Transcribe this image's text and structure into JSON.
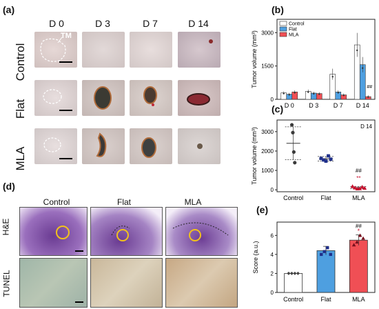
{
  "panel_a": {
    "label": "(a)",
    "columns": [
      "D 0",
      "D 3",
      "D 7",
      "D 14"
    ],
    "rows": [
      "Control",
      "Flat",
      "MLA"
    ],
    "tm_label": "TM"
  },
  "panel_d": {
    "label": "(d)",
    "columns": [
      "Control",
      "Flat",
      "MLA"
    ],
    "rows": [
      "H&E",
      "TUNEL"
    ]
  },
  "panel_b_label": "(b)",
  "panel_c_label": "(c)",
  "panel_e_label": "(e)",
  "colors": {
    "control": "#ffffff",
    "flat": "#4e9fe0",
    "mla": "#f04f55",
    "c_control": "#3a3a3a",
    "c_flat": "#1f2f8a",
    "c_mla": "#c8102e"
  },
  "chart_data": [
    {
      "type": "bar",
      "panel": "b",
      "ylabel": "Tumor volume (mm³)",
      "yticks": [
        0,
        1500,
        3000
      ],
      "ylim": [
        0,
        3600
      ],
      "categories": [
        "D 0",
        "D 3",
        "D 7",
        "D 14"
      ],
      "series": [
        {
          "name": "Control",
          "values": [
            290,
            360,
            1130,
            2450
          ]
        },
        {
          "name": "Flat",
          "values": [
            230,
            280,
            330,
            1560
          ]
        },
        {
          "name": "MLA",
          "values": [
            330,
            260,
            200,
            120
          ]
        }
      ],
      "annotations": [
        {
          "category": "D 14",
          "series": "MLA",
          "text": "##"
        }
      ],
      "legend": "top-left"
    },
    {
      "type": "scatter",
      "panel": "c",
      "ylabel": "Tumor volume (mm³)",
      "yticks": [
        0,
        1000,
        2000,
        3000
      ],
      "ylim": [
        -100,
        3600
      ],
      "categories": [
        "Control",
        "Flat",
        "MLA"
      ],
      "corner_label": "D 14",
      "groups": [
        {
          "name": "Control",
          "points": [
            3350,
            2950,
            1950,
            1400
          ],
          "mean": 2400,
          "sd": 850
        },
        {
          "name": "Flat",
          "points": [
            1620,
            1540,
            1480,
            1750,
            1580
          ],
          "mean": 1600,
          "sd": 120
        },
        {
          "name": "MLA",
          "points": [
            180,
            110,
            60,
            70,
            150,
            90
          ],
          "mean": 110,
          "sd": 60
        }
      ],
      "annotations": [
        {
          "category": "MLA",
          "text": "##"
        },
        {
          "category": "MLA",
          "text": "**"
        }
      ]
    },
    {
      "type": "bar",
      "panel": "e",
      "ylabel": "Score (a.u.)",
      "yticks": [
        0,
        2,
        4,
        6
      ],
      "ylim": [
        0,
        7.4
      ],
      "categories": [
        "Control",
        "Flat",
        "MLA"
      ],
      "values": [
        2,
        4.4,
        5.5
      ],
      "errors": [
        0,
        0.45,
        0.55
      ],
      "points": [
        [
          2,
          2,
          2,
          2
        ],
        [
          4.0,
          4.3,
          4.7,
          4.0
        ],
        [
          5.0,
          5.3,
          6.0,
          5.7
        ]
      ],
      "annotations": [
        {
          "category": "MLA",
          "text": "##"
        },
        {
          "category": "MLA",
          "text": "*"
        }
      ]
    }
  ]
}
